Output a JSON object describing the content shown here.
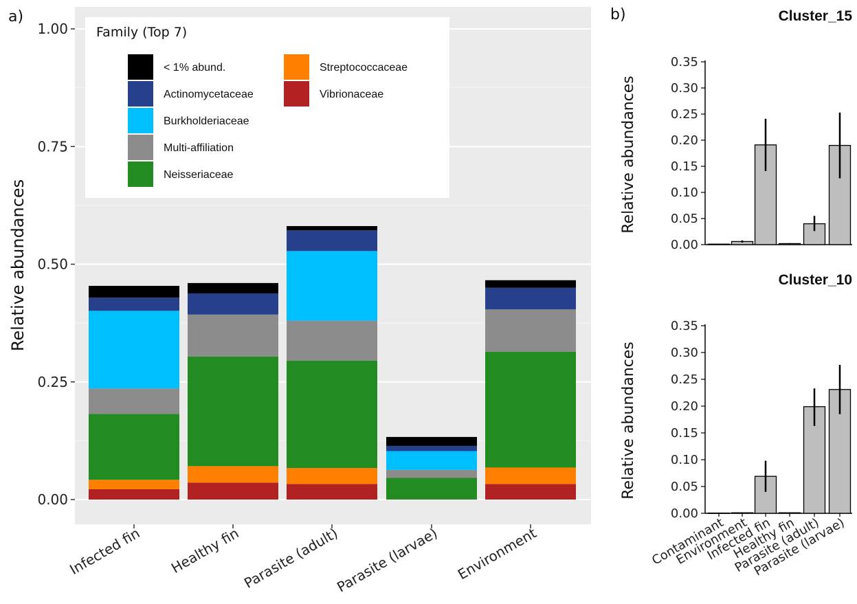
{
  "chart_data": [
    {
      "panel_label": "a)",
      "type": "bar",
      "stacked": true,
      "ylabel": "Relative abundances",
      "ylim": [
        0,
        1.0
      ],
      "y_ticks": [
        "0.00",
        "0.25",
        "0.50",
        "0.75",
        "1.00"
      ],
      "y_tick_values": [
        0,
        0.25,
        0.5,
        0.75,
        1.0
      ],
      "categories": [
        "Infected fin",
        "Healthy fin",
        "Parasite (adult)",
        "Parasite (larvae)",
        "Environment"
      ],
      "legend": {
        "title": "Family (Top 7)",
        "placement": "top-left"
      },
      "series": [
        {
          "name": "Vibrionaceae",
          "color": "#b22222",
          "values": [
            0.022,
            0.036,
            0.033,
            0.0,
            0.033
          ]
        },
        {
          "name": "Streptococcaceae",
          "color": "#ff7f00",
          "values": [
            0.02,
            0.035,
            0.034,
            0.0,
            0.035
          ]
        },
        {
          "name": "Neisseriaceae",
          "color": "#228b22",
          "values": [
            0.14,
            0.233,
            0.228,
            0.046,
            0.246
          ]
        },
        {
          "name": "Multi-affiliation",
          "color": "#8c8c8c",
          "values": [
            0.054,
            0.089,
            0.085,
            0.017,
            0.09
          ]
        },
        {
          "name": "Burkholderiaceae",
          "color": "#00bfff",
          "values": [
            0.165,
            0.0,
            0.148,
            0.04,
            0.0
          ]
        },
        {
          "name": "Actinomycetaceae",
          "color": "#27408b",
          "values": [
            0.028,
            0.045,
            0.044,
            0.011,
            0.046
          ]
        },
        {
          "name": "< 1% abund.",
          "color": "#000000",
          "values": [
            0.025,
            0.022,
            0.009,
            0.019,
            0.016
          ]
        }
      ],
      "legend_order": [
        "< 1% abund.",
        "Actinomycetaceae",
        "Burkholderiaceae",
        "Multi-affiliation",
        "Neisseriaceae",
        "Streptococcaceae",
        "Vibrionaceae"
      ]
    },
    {
      "panel_label": "b)",
      "type": "bar",
      "facet_title": "Cluster_15",
      "ylabel": "Relative abundances",
      "ylim": [
        0,
        0.35
      ],
      "y_ticks": [
        "0.00",
        "0.05",
        "0.10",
        "0.15",
        "0.20",
        "0.25",
        "0.30",
        "0.35"
      ],
      "y_tick_values": [
        0,
        0.05,
        0.1,
        0.15,
        0.2,
        0.25,
        0.3,
        0.35
      ],
      "categories": [
        "Contaminant",
        "Environment",
        "Infected fin",
        "Healthy fin",
        "Parasite (adult)",
        "Parasite (larvae)"
      ],
      "values": [
        0.001,
        0.006,
        0.191,
        0.002,
        0.04,
        0.19
      ],
      "error_low": [
        0.001,
        0.004,
        0.141,
        0.001,
        0.026,
        0.127
      ],
      "error_high": [
        0.001,
        0.008,
        0.241,
        0.003,
        0.055,
        0.253
      ],
      "bar_color": "#bebebe"
    },
    {
      "type": "bar",
      "facet_title": "Cluster_10",
      "ylabel": "Relative abundances",
      "ylim": [
        0,
        0.35
      ],
      "y_ticks": [
        "0.00",
        "0.05",
        "0.10",
        "0.15",
        "0.20",
        "0.25",
        "0.30",
        "0.35"
      ],
      "y_tick_values": [
        0,
        0.05,
        0.1,
        0.15,
        0.2,
        0.25,
        0.3,
        0.35
      ],
      "categories": [
        "Contaminant",
        "Environment",
        "Infected fin",
        "Healthy fin",
        "Parasite (adult)",
        "Parasite (larvae)"
      ],
      "values": [
        0.0005,
        0.001,
        0.069,
        0.001,
        0.199,
        0.231
      ],
      "error_low": [
        0.0005,
        0.001,
        0.04,
        0.001,
        0.163,
        0.185
      ],
      "error_high": [
        0.0005,
        0.001,
        0.098,
        0.001,
        0.233,
        0.277
      ],
      "bar_color": "#bebebe"
    }
  ]
}
